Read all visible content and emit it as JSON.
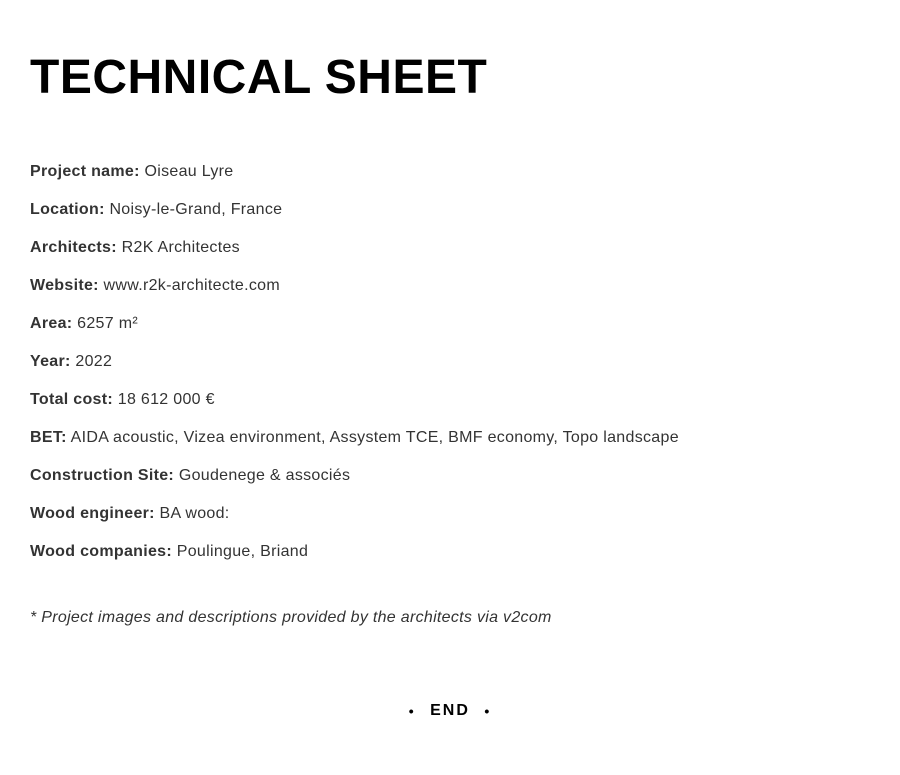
{
  "title": "TECHNICAL SHEET",
  "fields": [
    {
      "label": "Project name:",
      "value": "Oiseau Lyre"
    },
    {
      "label": "Location:",
      "value": "Noisy-le-Grand, France"
    },
    {
      "label": "Architects:",
      "value": "R2K Architectes"
    },
    {
      "label": "Website:",
      "value": "www.r2k-architecte.com"
    },
    {
      "label": "Area:",
      "value": "6257 m²"
    },
    {
      "label": "Year:",
      "value": "2022"
    },
    {
      "label": "Total cost:",
      "value": "18 612 000 €"
    },
    {
      "label": "BET:",
      "value": "AIDA acoustic, Vizea environment, Assystem TCE, BMF economy, Topo landscape"
    },
    {
      "label": "Construction Site:",
      "value": "Goudenege & associés"
    },
    {
      "label": "Wood engineer:",
      "value": "BA wood:"
    },
    {
      "label": "Wood companies:",
      "value": "Poulingue, Briand"
    }
  ],
  "footnote": "* Project images and descriptions provided by the architects via v2com",
  "end_text": "END",
  "colors": {
    "background": "#ffffff",
    "title": "#000000",
    "text": "#333333"
  },
  "typography": {
    "title_fontsize": 48,
    "body_fontsize": 16,
    "line_spacing": 14
  }
}
